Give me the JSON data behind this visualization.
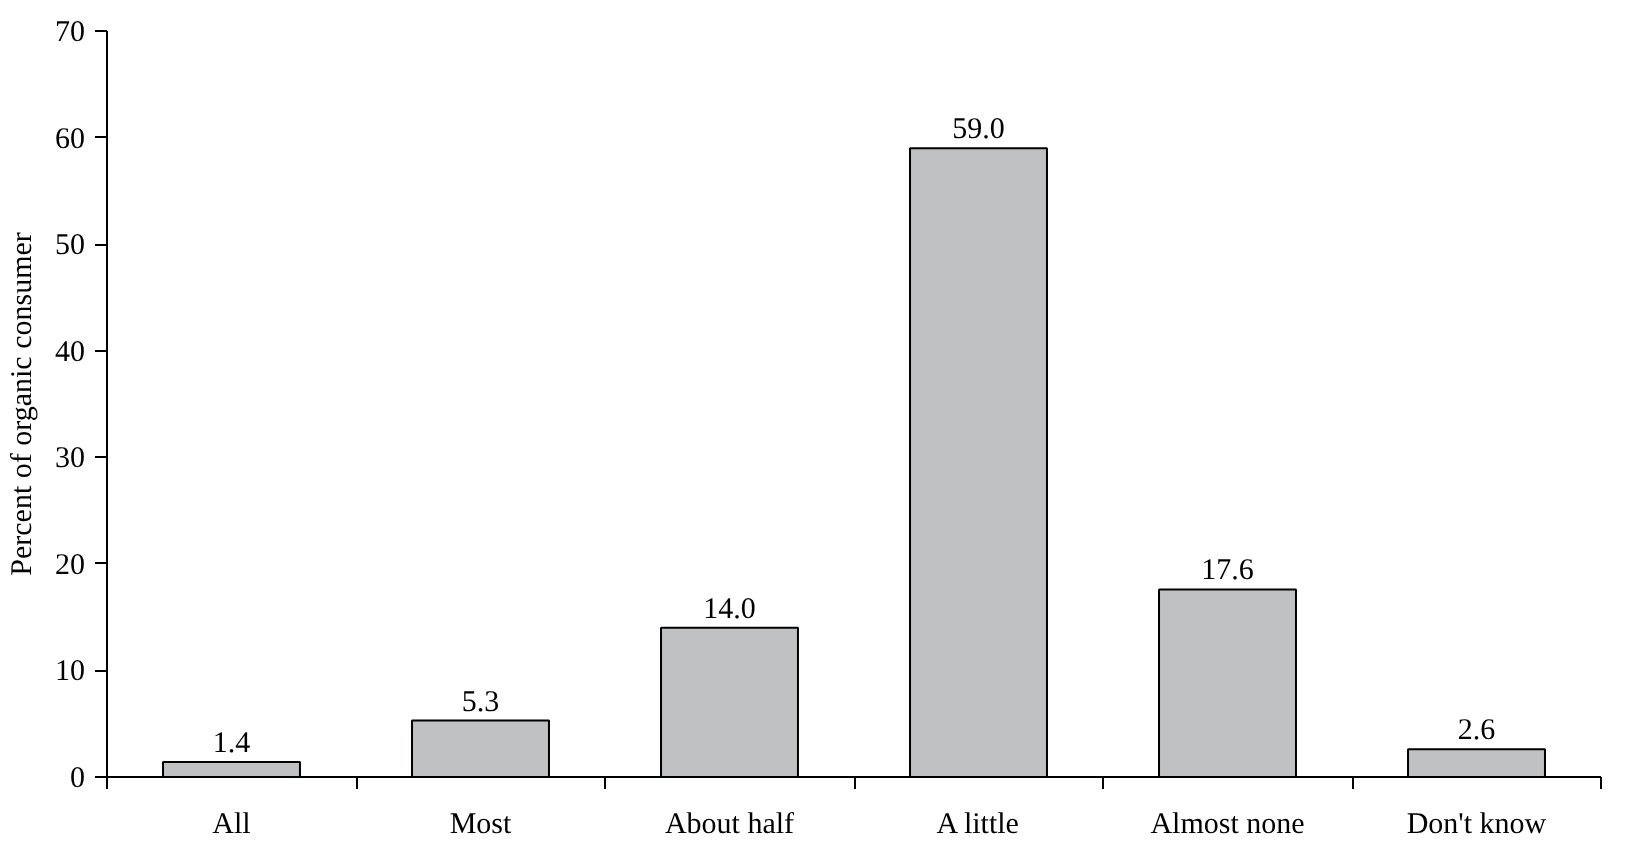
{
  "chart_data": {
    "type": "bar",
    "ylabel": "Percent of organic consumer",
    "categories": [
      "All",
      "Most",
      "About half",
      "A little",
      "Almost none",
      "Don't know"
    ],
    "values": [
      1.4,
      5.3,
      14.0,
      59.0,
      17.6,
      2.6
    ],
    "value_labels": [
      "1.4",
      "5.3",
      "14.0",
      "59.0",
      "17.6",
      "2.6"
    ],
    "color": "#bfc1c2",
    "ylim": [
      0,
      70
    ],
    "yticks": [
      0,
      10,
      20,
      30,
      40,
      50,
      60,
      70
    ],
    "grid": false
  }
}
